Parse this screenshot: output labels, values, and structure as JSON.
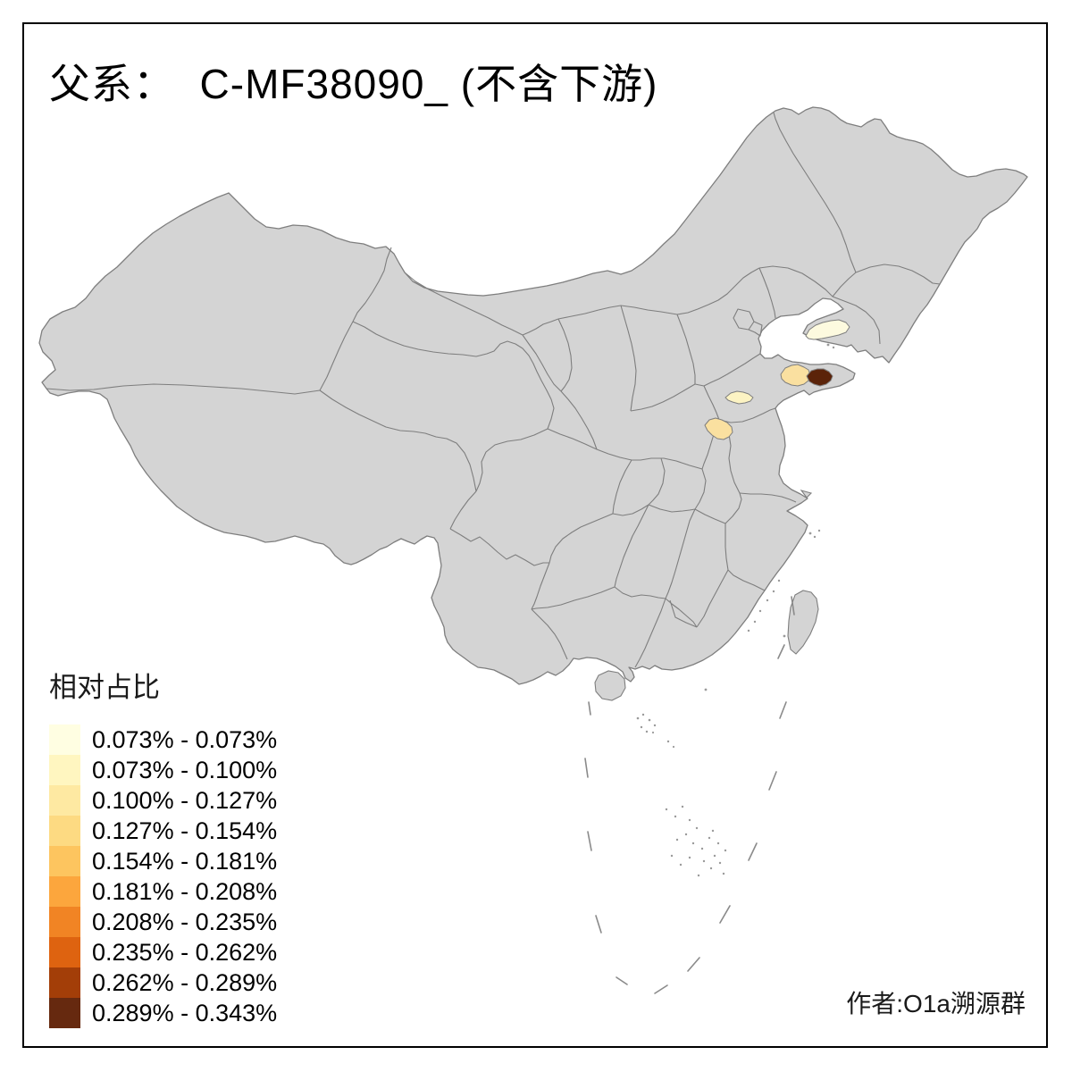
{
  "title": "父系：  C-MF38090_ (不含下游)",
  "author_credit": "作者:O1a溯源群",
  "colors": {
    "background": "#FFFFFF",
    "frame": "#000000",
    "land": "#D4D4D4",
    "boundary": "#7E7E7E"
  },
  "legend": {
    "title": "相对占比",
    "items": [
      {
        "label": "0.073% - 0.073%",
        "color": "#FFFEE2"
      },
      {
        "label": "0.073% - 0.100%",
        "color": "#FFF6C0"
      },
      {
        "label": "0.100% - 0.127%",
        "color": "#FEE9A2"
      },
      {
        "label": "0.127% - 0.154%",
        "color": "#FDDA82"
      },
      {
        "label": "0.154% - 0.181%",
        "color": "#FDC55F"
      },
      {
        "label": "0.181% - 0.208%",
        "color": "#FCA63D"
      },
      {
        "label": "0.208% - 0.235%",
        "color": "#F18424"
      },
      {
        "label": "0.235% - 0.262%",
        "color": "#DE6310"
      },
      {
        "label": "0.262% - 0.289%",
        "color": "#A33E08"
      },
      {
        "label": "0.289% - 0.343%",
        "color": "#66290F"
      }
    ]
  },
  "map": {
    "regions": [
      {
        "id": "region-liaodong-coast",
        "color": "#FDFADF"
      },
      {
        "id": "region-jinan",
        "color": "#FCF3C3"
      },
      {
        "id": "region-weifang",
        "color": "#FAE0A0"
      },
      {
        "id": "region-jining",
        "color": "#FAE0A0"
      },
      {
        "id": "region-qingdao",
        "color": "#5B2309"
      }
    ]
  }
}
